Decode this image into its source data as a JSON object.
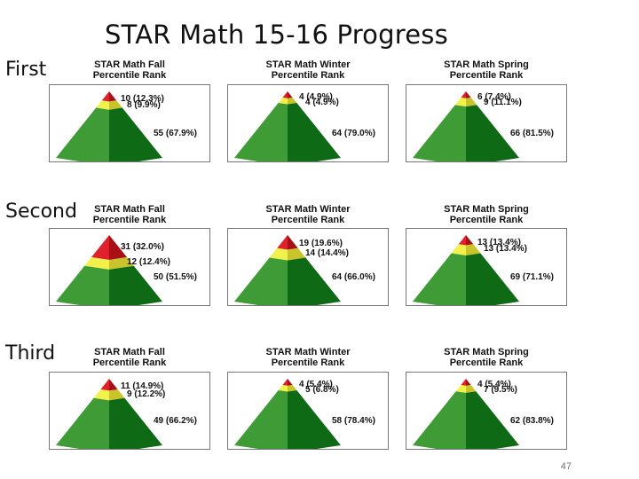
{
  "slide": {
    "title": "STAR Math 15-16 Progress",
    "page_number": "47"
  },
  "colors": {
    "red_tier": "#e0202a",
    "yellow_tier": "#f2f04a",
    "green_tier": "#3e9b36",
    "green_shadow": "#0f6a16"
  },
  "rows": [
    {
      "label": "First",
      "panels": [
        {
          "header_line1": "STAR Math Fall",
          "header_line2": "Percentile Rank",
          "red": "10 (12.3%)",
          "yellow": "8 (9.9%)",
          "green": "55 (67.9%)",
          "red_pct": 12.3,
          "yellow_pct": 9.9,
          "green_pct": 67.9
        },
        {
          "header_line1": "STAR Math Winter",
          "header_line2": "Percentile Rank",
          "red": "4 (4.9%)",
          "yellow": "4 (4.9%)",
          "green": "64 (79.0%)",
          "red_pct": 4.9,
          "yellow_pct": 4.9,
          "green_pct": 79.0
        },
        {
          "header_line1": "STAR Math Spring",
          "header_line2": "Percentile Rank",
          "red": "6 (7.4%)",
          "yellow": "9 (11.1%)",
          "green": "66 (81.5%)",
          "red_pct": 7.4,
          "yellow_pct": 11.1,
          "green_pct": 81.5
        }
      ]
    },
    {
      "label": "Second",
      "panels": [
        {
          "header_line1": "STAR Math Fall",
          "header_line2": "Percentile Rank",
          "red": "31 (32.0%)",
          "yellow": "12 (12.4%)",
          "green": "50 (51.5%)",
          "red_pct": 32.0,
          "yellow_pct": 12.4,
          "green_pct": 51.5
        },
        {
          "header_line1": "STAR Math Winter",
          "header_line2": "Percentile Rank",
          "red": "19 (19.6%)",
          "yellow": "14 (14.4%)",
          "green": "64 (66.0%)",
          "red_pct": 19.6,
          "yellow_pct": 14.4,
          "green_pct": 66.0
        },
        {
          "header_line1": "STAR Math Spring",
          "header_line2": "Percentile Rank",
          "red": "13 (13.4%)",
          "yellow": "13 (13.4%)",
          "green": "69 (71.1%)",
          "red_pct": 13.4,
          "yellow_pct": 13.4,
          "green_pct": 71.1
        }
      ]
    },
    {
      "label": "Third",
      "panels": [
        {
          "header_line1": "STAR Math Fall",
          "header_line2": "Percentile Rank",
          "red": "11 (14.9%)",
          "yellow": "9 (12.2%)",
          "green": "49 (66.2%)",
          "red_pct": 14.9,
          "yellow_pct": 12.2,
          "green_pct": 66.2
        },
        {
          "header_line1": "STAR Math Winter",
          "header_line2": "Percentile Rank",
          "red": "4 (5.4%)",
          "yellow": "5 (6.8%)",
          "green": "58 (78.4%)",
          "red_pct": 5.4,
          "yellow_pct": 6.8,
          "green_pct": 78.4
        },
        {
          "header_line1": "STAR Math Spring",
          "header_line2": "Percentile Rank",
          "red": "4 (5.4%)",
          "yellow": "7 (9.5%)",
          "green": "62 (83.8%)",
          "red_pct": 5.4,
          "yellow_pct": 9.5,
          "green_pct": 83.8
        }
      ]
    }
  ]
}
